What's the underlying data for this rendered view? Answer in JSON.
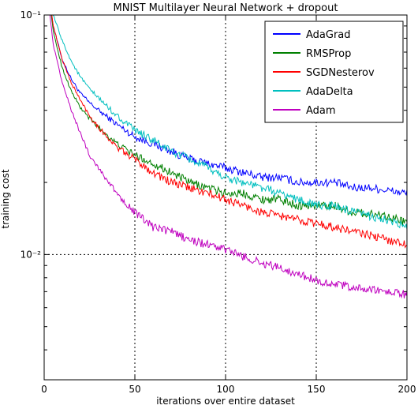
{
  "chart_data": {
    "type": "line",
    "title": "MNIST Multilayer Neural Network + dropout",
    "xlabel": "iterations over entire dataset",
    "ylabel": "training cost",
    "xlim": [
      0,
      200
    ],
    "ylim": [
      0.003,
      0.1
    ],
    "yscale": "log",
    "x_ticks": [
      0,
      50,
      100,
      150,
      200
    ],
    "x_tick_labels": [
      "0",
      "50",
      "100",
      "150",
      "200"
    ],
    "y_ticks": [
      0.01,
      0.1
    ],
    "y_tick_labels": [
      "10⁻²",
      "10⁻¹"
    ],
    "grid": "dotted at major ticks",
    "legend_position": "top-right",
    "x": [
      1,
      5,
      10,
      15,
      20,
      25,
      30,
      40,
      50,
      60,
      70,
      80,
      90,
      100,
      110,
      120,
      130,
      140,
      150,
      160,
      170,
      180,
      190,
      200
    ],
    "series": [
      {
        "name": "AdaGrad",
        "color": "#0000ff",
        "values": [
          0.15,
          0.09,
          0.065,
          0.054,
          0.047,
          0.043,
          0.04,
          0.035,
          0.031,
          0.029,
          0.027,
          0.025,
          0.024,
          0.023,
          0.022,
          0.021,
          0.021,
          0.02,
          0.02,
          0.02,
          0.019,
          0.019,
          0.0185,
          0.018
        ]
      },
      {
        "name": "RMSProp",
        "color": "#008000",
        "values": [
          0.16,
          0.085,
          0.06,
          0.048,
          0.041,
          0.037,
          0.034,
          0.029,
          0.026,
          0.024,
          0.022,
          0.02,
          0.019,
          0.018,
          0.018,
          0.017,
          0.017,
          0.016,
          0.016,
          0.016,
          0.015,
          0.0148,
          0.0145,
          0.0135
        ]
      },
      {
        "name": "SGDNesterov",
        "color": "#ff0000",
        "values": [
          0.16,
          0.09,
          0.065,
          0.052,
          0.044,
          0.038,
          0.034,
          0.028,
          0.025,
          0.022,
          0.02,
          0.019,
          0.018,
          0.017,
          0.016,
          0.015,
          0.0145,
          0.014,
          0.0135,
          0.013,
          0.0125,
          0.012,
          0.0115,
          0.011
        ]
      },
      {
        "name": "AdaDelta",
        "color": "#00bfbf",
        "values": [
          0.18,
          0.1,
          0.078,
          0.064,
          0.055,
          0.049,
          0.045,
          0.038,
          0.033,
          0.03,
          0.027,
          0.025,
          0.023,
          0.021,
          0.02,
          0.019,
          0.018,
          0.017,
          0.016,
          0.016,
          0.015,
          0.0145,
          0.0138,
          0.013
        ]
      },
      {
        "name": "Adam",
        "color": "#bf00bf",
        "values": [
          0.14,
          0.075,
          0.052,
          0.04,
          0.032,
          0.026,
          0.023,
          0.018,
          0.015,
          0.013,
          0.0125,
          0.0115,
          0.011,
          0.0105,
          0.0098,
          0.0092,
          0.0088,
          0.0083,
          0.0078,
          0.0075,
          0.0073,
          0.0071,
          0.007,
          0.0068
        ]
      }
    ]
  }
}
